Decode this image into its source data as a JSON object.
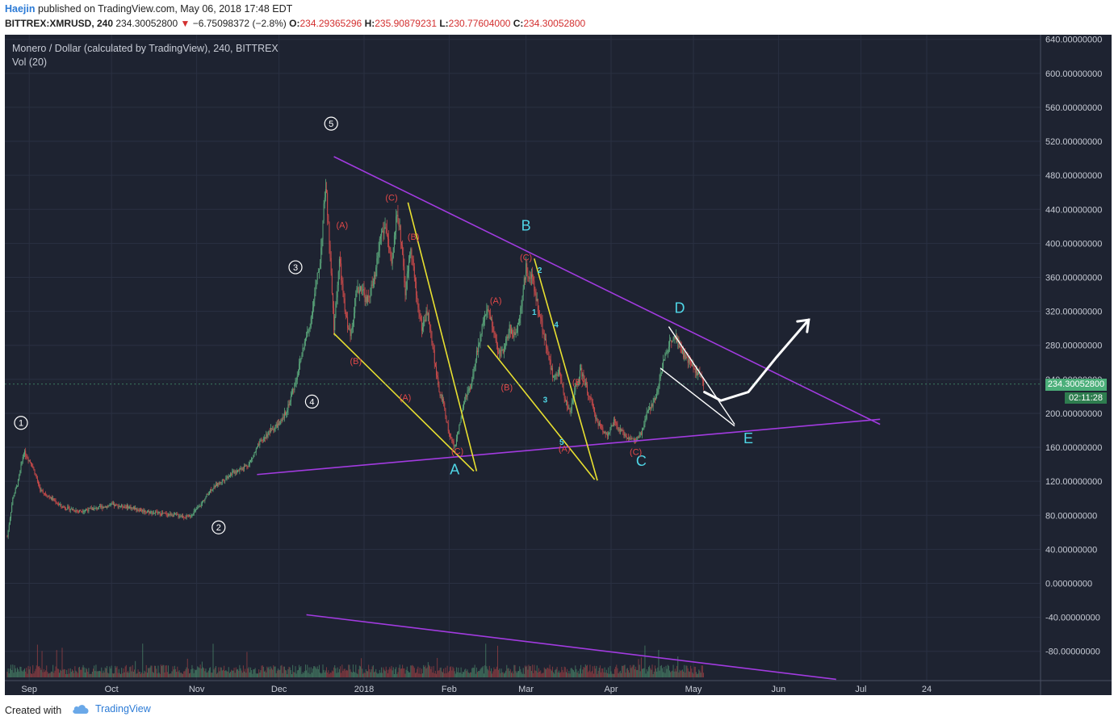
{
  "header": {
    "author": "Haejin",
    "published": "published on TradingView.com, May 06, 2018 17:48 EDT",
    "symbol": "BITTREX:XMRUSD, 240",
    "last": "234.30052800",
    "change": "−6.75098372 (−2.8%)",
    "o_label": "O:",
    "o": "234.29365296",
    "h_label": "H:",
    "h": "235.90879231",
    "l_label": "L:",
    "l": "230.77604000",
    "c_label": "C:",
    "c": "234.30052800"
  },
  "legend": {
    "title": "Monero / Dollar (calculated by TradingView), 240, BITTREX",
    "indicator": "Vol (20)"
  },
  "price_badge": "234.30052800",
  "time_badge": "02:11:28",
  "footer": {
    "created": "Created with",
    "brand": "TradingView"
  },
  "colors": {
    "background": "#1e2331",
    "up": "#5aa77b",
    "down": "#c94a4a",
    "triangle": "#a23be0",
    "channel": "#e8e030",
    "wave_label": "#4fd6e6",
    "sub_label": "#e04848",
    "count_label": "#ffffff"
  },
  "chart_data": {
    "type": "candlestick",
    "title": "Monero / Dollar (calculated by TradingView), 240, BITTREX",
    "y_axis": {
      "min": -100,
      "max": 640,
      "side": "right",
      "ticks": [
        "640.00000000",
        "600.00000000",
        "560.00000000",
        "520.00000000",
        "480.00000000",
        "440.00000000",
        "400.00000000",
        "360.00000000",
        "320.00000000",
        "280.00000000",
        "240.00000000",
        "200.00000000",
        "160.00000000",
        "120.00000000",
        "80.00000000",
        "40.00000000",
        "0.00000000",
        "-40.00000000",
        "-80.00000000"
      ],
      "tick_values": [
        640,
        600,
        560,
        520,
        480,
        440,
        400,
        360,
        320,
        280,
        240,
        200,
        160,
        120,
        80,
        40,
        0,
        -40,
        -80
      ]
    },
    "x_axis": {
      "labels": [
        "Sep",
        "Oct",
        "Nov",
        "Dec",
        "2018",
        "Feb",
        "Mar",
        "Apr",
        "May",
        "Jun",
        "Jul",
        "24"
      ],
      "label_days": [
        8,
        38,
        69,
        99,
        130,
        161,
        189,
        220,
        250,
        281,
        311,
        335
      ]
    },
    "price_path": [
      [
        0,
        55
      ],
      [
        2,
        100
      ],
      [
        4,
        120
      ],
      [
        6,
        155
      ],
      [
        9,
        140
      ],
      [
        12,
        110
      ],
      [
        16,
        100
      ],
      [
        20,
        90
      ],
      [
        26,
        85
      ],
      [
        32,
        88
      ],
      [
        38,
        92
      ],
      [
        44,
        90
      ],
      [
        50,
        85
      ],
      [
        56,
        82
      ],
      [
        62,
        80
      ],
      [
        66,
        78
      ],
      [
        70,
        90
      ],
      [
        74,
        110
      ],
      [
        78,
        120
      ],
      [
        82,
        130
      ],
      [
        88,
        140
      ],
      [
        92,
        165
      ],
      [
        96,
        180
      ],
      [
        100,
        190
      ],
      [
        103,
        215
      ],
      [
        106,
        250
      ],
      [
        108,
        280
      ],
      [
        110,
        300
      ],
      [
        112,
        340
      ],
      [
        114,
        380
      ],
      [
        116,
        470
      ],
      [
        117,
        420
      ],
      [
        119,
        300
      ],
      [
        121,
        380
      ],
      [
        123,
        320
      ],
      [
        125,
        290
      ],
      [
        127,
        340
      ],
      [
        129,
        350
      ],
      [
        131,
        330
      ],
      [
        134,
        360
      ],
      [
        136,
        410
      ],
      [
        138,
        420
      ],
      [
        140,
        370
      ],
      [
        142,
        440
      ],
      [
        144,
        390
      ],
      [
        145,
        340
      ],
      [
        147,
        400
      ],
      [
        149,
        340
      ],
      [
        151,
        300
      ],
      [
        153,
        320
      ],
      [
        155,
        280
      ],
      [
        157,
        230
      ],
      [
        159,
        210
      ],
      [
        161,
        175
      ],
      [
        163,
        160
      ],
      [
        165,
        190
      ],
      [
        167,
        220
      ],
      [
        169,
        230
      ],
      [
        171,
        270
      ],
      [
        173,
        300
      ],
      [
        175,
        320
      ],
      [
        177,
        300
      ],
      [
        179,
        270
      ],
      [
        181,
        275
      ],
      [
        183,
        300
      ],
      [
        185,
        290
      ],
      [
        187,
        320
      ],
      [
        189,
        370
      ],
      [
        191,
        360
      ],
      [
        193,
        330
      ],
      [
        195,
        300
      ],
      [
        197,
        270
      ],
      [
        199,
        240
      ],
      [
        201,
        250
      ],
      [
        203,
        220
      ],
      [
        205,
        200
      ],
      [
        207,
        230
      ],
      [
        209,
        250
      ],
      [
        211,
        230
      ],
      [
        213,
        210
      ],
      [
        215,
        190
      ],
      [
        217,
        180
      ],
      [
        219,
        175
      ],
      [
        221,
        190
      ],
      [
        223,
        180
      ],
      [
        225,
        175
      ],
      [
        227,
        170
      ],
      [
        229,
        168
      ],
      [
        231,
        175
      ],
      [
        233,
        200
      ],
      [
        235,
        210
      ],
      [
        237,
        230
      ],
      [
        239,
        260
      ],
      [
        241,
        280
      ],
      [
        243,
        295
      ],
      [
        245,
        280
      ],
      [
        247,
        265
      ],
      [
        249,
        258
      ],
      [
        251,
        250
      ],
      [
        253,
        240
      ],
      [
        254,
        234
      ]
    ],
    "wave_labels": [
      {
        "text": "A",
        "day": 163,
        "price": 128,
        "style": "wave"
      },
      {
        "text": "B",
        "day": 189,
        "price": 415,
        "style": "wave"
      },
      {
        "text": "C",
        "day": 231,
        "price": 138,
        "style": "wave"
      },
      {
        "text": "D",
        "day": 245,
        "price": 318,
        "style": "wave"
      },
      {
        "text": "E",
        "day": 270,
        "price": 165,
        "style": "wave"
      },
      {
        "text": "1",
        "day": 5,
        "price": 185,
        "style": "circle"
      },
      {
        "text": "2",
        "day": 77,
        "price": 62,
        "style": "circle"
      },
      {
        "text": "3",
        "day": 105,
        "price": 368,
        "style": "circle"
      },
      {
        "text": "4",
        "day": 111,
        "price": 210,
        "style": "circle"
      },
      {
        "text": "5",
        "day": 118,
        "price": 537,
        "style": "circle"
      },
      {
        "text": "(A)",
        "day": 122,
        "price": 418,
        "style": "sub"
      },
      {
        "text": "(B)",
        "day": 127,
        "price": 258,
        "style": "sub"
      },
      {
        "text": "(C)",
        "day": 140,
        "price": 450,
        "style": "sub"
      },
      {
        "text": "(A)",
        "day": 145,
        "price": 215,
        "style": "sub"
      },
      {
        "text": "(B)",
        "day": 148,
        "price": 404,
        "style": "sub"
      },
      {
        "text": "(C)",
        "day": 164,
        "price": 152,
        "style": "sub"
      },
      {
        "text": "(A)",
        "day": 178,
        "price": 329,
        "style": "sub"
      },
      {
        "text": "(B)",
        "day": 182,
        "price": 227,
        "style": "sub"
      },
      {
        "text": "(C)",
        "day": 189,
        "price": 380,
        "style": "sub"
      },
      {
        "text": "(A)",
        "day": 203,
        "price": 155,
        "style": "sub"
      },
      {
        "text": "(B)",
        "day": 208,
        "price": 233,
        "style": "sub"
      },
      {
        "text": "(C)",
        "day": 229,
        "price": 151,
        "style": "sub"
      },
      {
        "text": "1",
        "day": 192,
        "price": 316,
        "style": "small"
      },
      {
        "text": "2",
        "day": 194,
        "price": 365,
        "style": "small"
      },
      {
        "text": "3",
        "day": 196,
        "price": 213,
        "style": "small"
      },
      {
        "text": "4",
        "day": 200,
        "price": 301,
        "style": "small"
      },
      {
        "text": "5",
        "day": 202,
        "price": 163,
        "style": "small"
      }
    ],
    "drawings": [
      {
        "kind": "triangle_upper",
        "points": [
          [
            119,
            502
          ],
          [
            318,
            187
          ]
        ]
      },
      {
        "kind": "triangle_lower",
        "points": [
          [
            91,
            128
          ],
          [
            318,
            193
          ]
        ]
      },
      {
        "kind": "volume_trend",
        "points": [
          [
            109,
            -37
          ],
          [
            302,
            -113
          ]
        ]
      },
      {
        "kind": "channel",
        "points": [
          [
            119,
            294
          ],
          [
            170,
            132
          ]
        ]
      },
      {
        "kind": "channel",
        "points": [
          [
            146,
            448
          ],
          [
            171,
            132
          ]
        ]
      },
      {
        "kind": "channel",
        "points": [
          [
            175,
            280
          ],
          [
            214,
            122
          ]
        ]
      },
      {
        "kind": "channel",
        "points": [
          [
            192,
            382
          ],
          [
            215,
            121
          ]
        ]
      },
      {
        "kind": "wedge",
        "points": [
          [
            241,
            302
          ],
          [
            265,
            187
          ]
        ]
      },
      {
        "kind": "wedge",
        "points": [
          [
            238,
            253
          ],
          [
            265,
            185
          ]
        ]
      }
    ],
    "projection": [
      [
        254,
        225
      ],
      [
        260,
        215
      ],
      [
        270,
        225
      ],
      [
        280,
        265
      ],
      [
        292,
        310
      ]
    ]
  }
}
